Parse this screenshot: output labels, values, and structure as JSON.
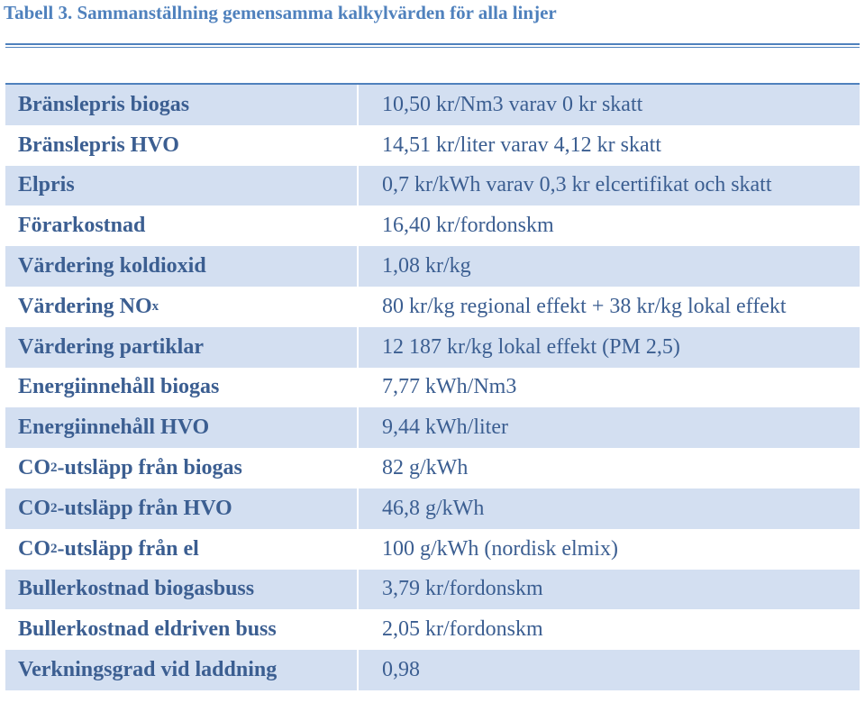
{
  "caption": "Tabell 3. Sammanställning gemensamma kalkylvärden för alla linjer",
  "rows": [
    {
      "label": "Bränslepris biogas",
      "value": "10,50 kr/Nm3 varav 0 kr skatt"
    },
    {
      "label": "Bränslepris HVO",
      "value": "14,51 kr/liter varav 4,12 kr skatt"
    },
    {
      "label": "Elpris",
      "value": "0,7 kr/kWh varav 0,3 kr elcertifikat och skatt"
    },
    {
      "label": "Förarkostnad",
      "value": "16,40 kr/fordonskm"
    },
    {
      "label": "Värdering koldioxid",
      "value": "1,08 kr/kg"
    },
    {
      "label_main": "Värdering NO",
      "label_sub": "x",
      "value": "80 kr/kg regional effekt + 38 kr/kg lokal effekt"
    },
    {
      "label": "Värdering partiklar",
      "value": "12 187 kr/kg lokal effekt (PM 2,5)"
    },
    {
      "label": "Energiinnehåll biogas",
      "value": "7,77 kWh/Nm3"
    },
    {
      "label": "Energiinnehåll HVO",
      "value": "9,44 kWh/liter"
    },
    {
      "label_pre": "CO",
      "label_sub": "2",
      "label_post": "-utsläpp från biogas",
      "value": "82 g/kWh"
    },
    {
      "label_pre": "CO",
      "label_sub": "2",
      "label_post": "-utsläpp från HVO",
      "value": "46,8 g/kWh"
    },
    {
      "label_pre": "CO",
      "label_sub": "2",
      "label_post": "-utsläpp från el",
      "value": "100 g/kWh (nordisk elmix)"
    },
    {
      "label": "Bullerkostnad biogasbuss",
      "value": "3,79 kr/fordonskm"
    },
    {
      "label": "Bullerkostnad eldriven buss",
      "value": "2,05 kr/fordonskm"
    },
    {
      "label": "Verkningsgrad vid laddning",
      "value": "0,98"
    }
  ]
}
